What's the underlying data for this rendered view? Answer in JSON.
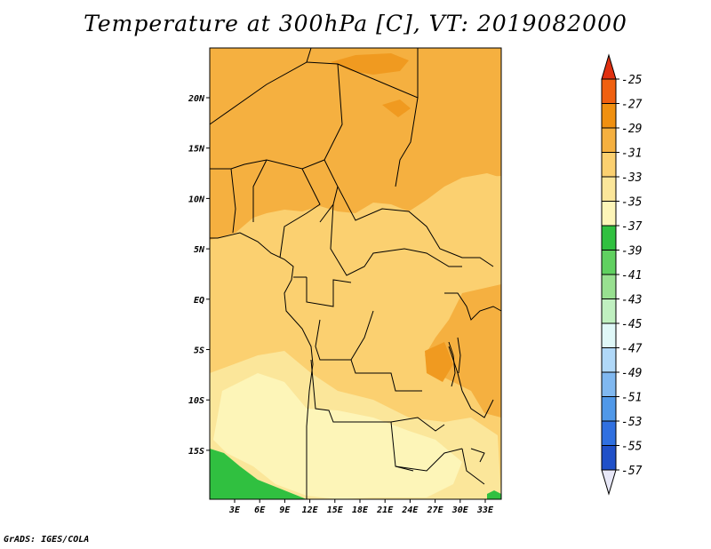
{
  "title": "Temperature at 300hPa [C], VT: 2019082000",
  "footer": "GrADS: IGES/COLA",
  "lat_labels": [
    "20N",
    "15N",
    "10N",
    "5N",
    "EQ",
    "5S",
    "10S",
    "15S"
  ],
  "lon_labels": [
    "3E",
    "6E",
    "9E",
    "12E",
    "15E",
    "18E",
    "21E",
    "24E",
    "27E",
    "30E",
    "33E"
  ],
  "colorbar": {
    "levels": [
      "-25",
      "-27",
      "-29",
      "-31",
      "-33",
      "-35",
      "-37",
      "-39",
      "-41",
      "-43",
      "-45",
      "-47",
      "-49",
      "-51",
      "-53",
      "-55",
      "-57"
    ],
    "colors": [
      "#f06010",
      "#f09010",
      "#f5b040",
      "#fbd070",
      "#fbe69a",
      "#fdf5b8",
      "#30c040",
      "#60d060",
      "#98e090",
      "#c0f0c0",
      "#e0f8f8",
      "#b0d8f8",
      "#80b8f0",
      "#5098e8",
      "#3070e0",
      "#2050c8",
      "#1030a0",
      "#102080"
    ],
    "top_color": "#e03010",
    "bottom_color": "#e8e8f8"
  },
  "map_colors": {
    "orange": "#f5b040",
    "yellow": "#fbd070",
    "light_yellow": "#fbe69a",
    "pale": "#fdf5b8",
    "green": "#30c040",
    "border": "#000000"
  }
}
